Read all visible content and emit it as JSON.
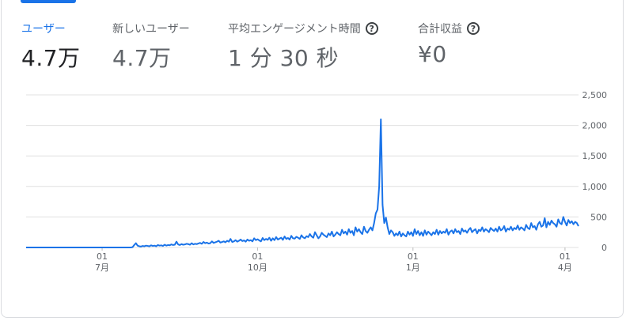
{
  "metrics": [
    {
      "label": "ユーザー",
      "value": "4.7万",
      "active": true,
      "help": false
    },
    {
      "label": "新しいユーザー",
      "value": "4.7万",
      "active": false,
      "help": false
    },
    {
      "label": "平均エンゲージメント時間",
      "value": "1 分 30 秒",
      "active": false,
      "help": true
    },
    {
      "label": "合計収益",
      "value": "¥0",
      "active": false,
      "help": true
    }
  ],
  "colors": {
    "accent": "#1a73e8",
    "grid": "#e0e0e0",
    "axis_text": "#5f6368"
  },
  "chart_data": {
    "type": "line",
    "x_ticks": [
      {
        "day": "01",
        "month": "7月",
        "index": 45
      },
      {
        "day": "01",
        "month": "10月",
        "index": 137
      },
      {
        "day": "01",
        "month": "1月",
        "index": 229
      },
      {
        "day": "01",
        "month": "4月",
        "index": 319
      }
    ],
    "y_ticks": [
      "2,500",
      "2,000",
      "1,500",
      "1,000",
      "500",
      "0"
    ],
    "ylim": [
      0,
      2500
    ],
    "grid": true,
    "series": [
      {
        "values": [
          0,
          0,
          0,
          0,
          0,
          0,
          0,
          0,
          0,
          0,
          0,
          0,
          0,
          0,
          0,
          0,
          0,
          0,
          0,
          0,
          0,
          0,
          0,
          0,
          0,
          0,
          0,
          0,
          0,
          0,
          0,
          0,
          0,
          0,
          0,
          0,
          0,
          0,
          0,
          0,
          0,
          0,
          0,
          0,
          0,
          0,
          0,
          0,
          0,
          0,
          0,
          0,
          0,
          0,
          0,
          0,
          0,
          0,
          0,
          0,
          0,
          0,
          0,
          5,
          40,
          70,
          30,
          20,
          15,
          25,
          20,
          30,
          25,
          20,
          35,
          25,
          30,
          20,
          40,
          30,
          35,
          25,
          45,
          30,
          40,
          35,
          50,
          40,
          45,
          95,
          50,
          40,
          55,
          45,
          50,
          60,
          55,
          45,
          70,
          50,
          60,
          55,
          65,
          75,
          60,
          90,
          70,
          80,
          65,
          70,
          100,
          75,
          85,
          95,
          110,
          80,
          90,
          100,
          85,
          110,
          95,
          140,
          90,
          100,
          120,
          95,
          110,
          130,
          105,
          115,
          95,
          130,
          110,
          120,
          100,
          150,
          120,
          135,
          115,
          100,
          155,
          120,
          140,
          125,
          160,
          110,
          150,
          120,
          170,
          130,
          145,
          160,
          125,
          180,
          140,
          155,
          130,
          190,
          150,
          145,
          175,
          160,
          140,
          200,
          165,
          150,
          185,
          170,
          220,
          180,
          160,
          250,
          200,
          150,
          180,
          240,
          210,
          190,
          170,
          230,
          200,
          260,
          180,
          210,
          250,
          220,
          200,
          290,
          230,
          260,
          210,
          300,
          240,
          270,
          200,
          330,
          260,
          300,
          250,
          220,
          340,
          270,
          240,
          290,
          330,
          280,
          400,
          560,
          620,
          1000,
          2100,
          700,
          400,
          490,
          330,
          220,
          280,
          250,
          190,
          230,
          200,
          260,
          180,
          230,
          200,
          180,
          260,
          210,
          250,
          190,
          300,
          220,
          270,
          200,
          250,
          190,
          280,
          210,
          260,
          230,
          200,
          250,
          220,
          290,
          210,
          270,
          230,
          260,
          240,
          300,
          210,
          260,
          280,
          230,
          300,
          250,
          270,
          220,
          310,
          260,
          280,
          240,
          290,
          320,
          250,
          280,
          300,
          230,
          290,
          270,
          330,
          260,
          300,
          280,
          250,
          320,
          290,
          270,
          310,
          260,
          340,
          280,
          300,
          350,
          260,
          310,
          290,
          340,
          280,
          320,
          300,
          360,
          290,
          330,
          310,
          280,
          370,
          320,
          300,
          400,
          330,
          350,
          290,
          380,
          420,
          340,
          360,
          480,
          330,
          420,
          370,
          440,
          400,
          380,
          340,
          460,
          400,
          380,
          500,
          420,
          360,
          450,
          400,
          430,
          380,
          420,
          400,
          350
        ]
      }
    ]
  }
}
